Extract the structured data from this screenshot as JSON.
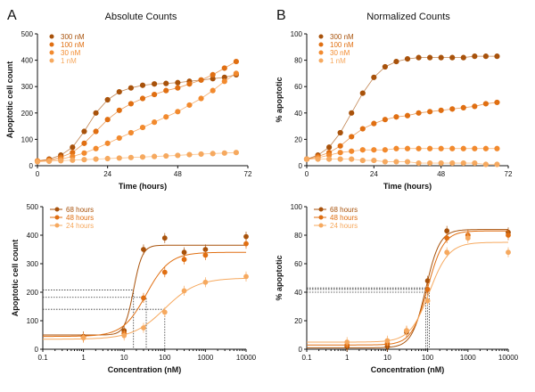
{
  "panels": [
    {
      "letter": "A",
      "title": "Absolute Counts",
      "type": "line",
      "xlabel": "Time (hours)",
      "ylabel": "Apoptotic cell count",
      "xscale": "linear",
      "xlim": [
        0,
        72
      ],
      "ylim": [
        0,
        500
      ],
      "xticks": [
        0,
        24,
        48,
        72
      ],
      "yticks": [
        0,
        100,
        200,
        300,
        400,
        500
      ],
      "xticklabels": [
        "0",
        "24",
        "48",
        "72"
      ],
      "yticklabels": [
        "0",
        "100",
        "200",
        "300",
        "400",
        "500"
      ],
      "legend_position": "top-left",
      "series": [
        {
          "name": "300 nM",
          "color": "#a8520b",
          "points": [
            [
              0,
              18
            ],
            [
              4,
              25
            ],
            [
              8,
              40
            ],
            [
              12,
              70
            ],
            [
              16,
              130
            ],
            [
              20,
              200
            ],
            [
              24,
              250
            ],
            [
              28,
              280
            ],
            [
              32,
              295
            ],
            [
              36,
              305
            ],
            [
              40,
              310
            ],
            [
              44,
              312
            ],
            [
              48,
              315
            ],
            [
              52,
              320
            ],
            [
              56,
              325
            ],
            [
              60,
              330
            ],
            [
              64,
              335
            ],
            [
              68,
              345
            ]
          ]
        },
        {
          "name": "100 nM",
          "color": "#e06f12",
          "points": [
            [
              0,
              18
            ],
            [
              4,
              22
            ],
            [
              8,
              32
            ],
            [
              12,
              50
            ],
            [
              16,
              85
            ],
            [
              20,
              130
            ],
            [
              24,
              175
            ],
            [
              28,
              210
            ],
            [
              32,
              235
            ],
            [
              36,
              255
            ],
            [
              40,
              270
            ],
            [
              44,
              285
            ],
            [
              48,
              295
            ],
            [
              52,
              310
            ],
            [
              56,
              325
            ],
            [
              60,
              345
            ],
            [
              64,
              370
            ],
            [
              68,
              395
            ]
          ]
        },
        {
          "name": "30 nM",
          "color": "#f28a2e",
          "points": [
            [
              0,
              18
            ],
            [
              4,
              20
            ],
            [
              8,
              25
            ],
            [
              12,
              35
            ],
            [
              16,
              48
            ],
            [
              20,
              65
            ],
            [
              24,
              85
            ],
            [
              28,
              105
            ],
            [
              32,
              125
            ],
            [
              36,
              145
            ],
            [
              40,
              165
            ],
            [
              44,
              185
            ],
            [
              48,
              205
            ],
            [
              52,
              230
            ],
            [
              56,
              255
            ],
            [
              60,
              285
            ],
            [
              64,
              320
            ],
            [
              68,
              350
            ]
          ]
        },
        {
          "name": "1 nM",
          "color": "#f6a95f",
          "points": [
            [
              0,
              15
            ],
            [
              4,
              17
            ],
            [
              8,
              19
            ],
            [
              12,
              21
            ],
            [
              16,
              23
            ],
            [
              20,
              25
            ],
            [
              24,
              27
            ],
            [
              28,
              29
            ],
            [
              32,
              31
            ],
            [
              36,
              33
            ],
            [
              40,
              35
            ],
            [
              44,
              37
            ],
            [
              48,
              39
            ],
            [
              52,
              42
            ],
            [
              56,
              44
            ],
            [
              60,
              46
            ],
            [
              64,
              48
            ],
            [
              68,
              50
            ]
          ]
        }
      ]
    },
    {
      "letter": "B",
      "title": "Normalized Counts",
      "type": "line",
      "xlabel": "Time (hours)",
      "ylabel": "% apoptotic",
      "xscale": "linear",
      "xlim": [
        0,
        72
      ],
      "ylim": [
        0,
        100
      ],
      "xticks": [
        0,
        24,
        48,
        72
      ],
      "yticks": [
        0,
        20,
        40,
        60,
        80,
        100
      ],
      "xticklabels": [
        "0",
        "24",
        "48",
        "72"
      ],
      "yticklabels": [
        "0",
        "20",
        "40",
        "60",
        "80",
        "100"
      ],
      "legend_position": "top-left",
      "series": [
        {
          "name": "300 nM",
          "color": "#a8520b",
          "points": [
            [
              0,
              5
            ],
            [
              4,
              8
            ],
            [
              8,
              14
            ],
            [
              12,
              25
            ],
            [
              16,
              40
            ],
            [
              20,
              55
            ],
            [
              24,
              67
            ],
            [
              28,
              75
            ],
            [
              32,
              79
            ],
            [
              36,
              81
            ],
            [
              40,
              82
            ],
            [
              44,
              82
            ],
            [
              48,
              82
            ],
            [
              52,
              82
            ],
            [
              56,
              82
            ],
            [
              60,
              83
            ],
            [
              64,
              83
            ],
            [
              68,
              83
            ]
          ]
        },
        {
          "name": "100 nM",
          "color": "#e06f12",
          "points": [
            [
              0,
              5
            ],
            [
              4,
              7
            ],
            [
              8,
              10
            ],
            [
              12,
              15
            ],
            [
              16,
              22
            ],
            [
              20,
              28
            ],
            [
              24,
              32
            ],
            [
              28,
              35
            ],
            [
              32,
              37
            ],
            [
              36,
              38
            ],
            [
              40,
              40
            ],
            [
              44,
              41
            ],
            [
              48,
              42
            ],
            [
              52,
              43
            ],
            [
              56,
              44
            ],
            [
              60,
              45
            ],
            [
              64,
              47
            ],
            [
              68,
              48
            ]
          ]
        },
        {
          "name": "30 nM",
          "color": "#f28a2e",
          "points": [
            [
              0,
              5
            ],
            [
              4,
              6
            ],
            [
              8,
              8
            ],
            [
              12,
              10
            ],
            [
              16,
              11
            ],
            [
              20,
              12
            ],
            [
              24,
              12
            ],
            [
              28,
              12
            ],
            [
              32,
              13
            ],
            [
              36,
              13
            ],
            [
              40,
              13
            ],
            [
              44,
              13
            ],
            [
              48,
              13
            ],
            [
              52,
              13
            ],
            [
              56,
              13
            ],
            [
              60,
              13
            ],
            [
              64,
              13
            ],
            [
              68,
              13
            ]
          ]
        },
        {
          "name": "1 nM",
          "color": "#f6a95f",
          "points": [
            [
              0,
              5
            ],
            [
              4,
              5
            ],
            [
              8,
              5
            ],
            [
              12,
              5
            ],
            [
              16,
              5
            ],
            [
              20,
              4
            ],
            [
              24,
              4
            ],
            [
              28,
              3
            ],
            [
              32,
              3
            ],
            [
              36,
              3
            ],
            [
              40,
              2
            ],
            [
              44,
              2
            ],
            [
              48,
              2
            ],
            [
              52,
              2
            ],
            [
              56,
              2
            ],
            [
              60,
              2
            ],
            [
              64,
              1
            ],
            [
              68,
              1
            ]
          ]
        }
      ]
    },
    {
      "type": "scatter",
      "xlabel": "Concentration (nM)",
      "ylabel": "Apoptotic cell count",
      "xscale": "log",
      "xlim": [
        0.1,
        10000
      ],
      "ylim": [
        0,
        500
      ],
      "xticks": [
        0.1,
        1,
        10,
        100,
        1000,
        10000
      ],
      "yticks": [
        0,
        100,
        200,
        300,
        400,
        500
      ],
      "xticklabels": [
        "0.1",
        "1",
        "10",
        "100",
        "1000",
        "10000"
      ],
      "yticklabels": [
        "0",
        "100",
        "200",
        "300",
        "400",
        "500"
      ],
      "legend_position": "top-left",
      "ec50_lines": [
        {
          "x": 17,
          "y": 208
        },
        {
          "x": 35,
          "y": 182
        },
        {
          "x": 100,
          "y": 140
        }
      ],
      "series": [
        {
          "name": "68 hours",
          "color": "#a8520b",
          "points": [
            [
              1,
              45
            ],
            [
              10,
              65
            ],
            [
              30,
              350
            ],
            [
              100,
              390
            ],
            [
              300,
              340
            ],
            [
              1000,
              350
            ],
            [
              10000,
              395
            ]
          ],
          "fit": {
            "bottom": 50,
            "top": 365,
            "ec50": 17,
            "hill": 4
          }
        },
        {
          "name": "48 hours",
          "color": "#e06f12",
          "points": [
            [
              1,
              42
            ],
            [
              10,
              55
            ],
            [
              30,
              180
            ],
            [
              100,
              270
            ],
            [
              300,
              315
            ],
            [
              1000,
              330
            ],
            [
              10000,
              370
            ]
          ],
          "fit": {
            "bottom": 45,
            "top": 340,
            "ec50": 35,
            "hill": 1.5
          }
        },
        {
          "name": "24 hours",
          "color": "#f6a95f",
          "points": [
            [
              1,
              40
            ],
            [
              10,
              48
            ],
            [
              30,
              75
            ],
            [
              100,
              130
            ],
            [
              300,
              205
            ],
            [
              1000,
              235
            ],
            [
              10000,
              255
            ]
          ],
          "fit": {
            "bottom": 35,
            "top": 250,
            "ec50": 100,
            "hill": 1.1
          }
        }
      ]
    },
    {
      "type": "scatter",
      "xlabel": "Concentration (nM)",
      "ylabel": "% apoptotic",
      "xscale": "log",
      "xlim": [
        0.1,
        10000
      ],
      "ylim": [
        0,
        100
      ],
      "xticks": [
        0.1,
        1,
        10,
        100,
        1000,
        10000
      ],
      "yticks": [
        0,
        20,
        40,
        60,
        80,
        100
      ],
      "xticklabels": [
        "0.1",
        "1",
        "10",
        "100",
        "1000",
        "10000"
      ],
      "yticklabels": [
        "0",
        "20",
        "40",
        "60",
        "80",
        "100"
      ],
      "legend_position": "top-left",
      "ec50_lines": [
        {
          "x": 90,
          "y": 43
        },
        {
          "x": 100,
          "y": 42
        },
        {
          "x": 110,
          "y": 40
        }
      ],
      "series": [
        {
          "name": "68 hours",
          "color": "#a8520b",
          "points": [
            [
              1,
              2
            ],
            [
              10,
              2
            ],
            [
              30,
              12
            ],
            [
              100,
              48
            ],
            [
              300,
              83
            ],
            [
              1000,
              80
            ],
            [
              10000,
              82
            ]
          ],
          "fit": {
            "bottom": 1,
            "top": 84,
            "ec50": 90,
            "hill": 2.5
          }
        },
        {
          "name": "48 hours",
          "color": "#e06f12",
          "points": [
            [
              1,
              3
            ],
            [
              10,
              4
            ],
            [
              30,
              13
            ],
            [
              100,
              42
            ],
            [
              300,
              78
            ],
            [
              1000,
              80
            ],
            [
              10000,
              80
            ]
          ],
          "fit": {
            "bottom": 3,
            "top": 83,
            "ec50": 100,
            "hill": 2.2
          }
        },
        {
          "name": "24 hours",
          "color": "#f6a95f",
          "points": [
            [
              1,
              5
            ],
            [
              10,
              6
            ],
            [
              30,
              13
            ],
            [
              100,
              34
            ],
            [
              300,
              68
            ],
            [
              1000,
              78
            ],
            [
              10000,
              68
            ]
          ],
          "fit": {
            "bottom": 5,
            "top": 75,
            "ec50": 110,
            "hill": 1.8
          }
        }
      ]
    }
  ]
}
